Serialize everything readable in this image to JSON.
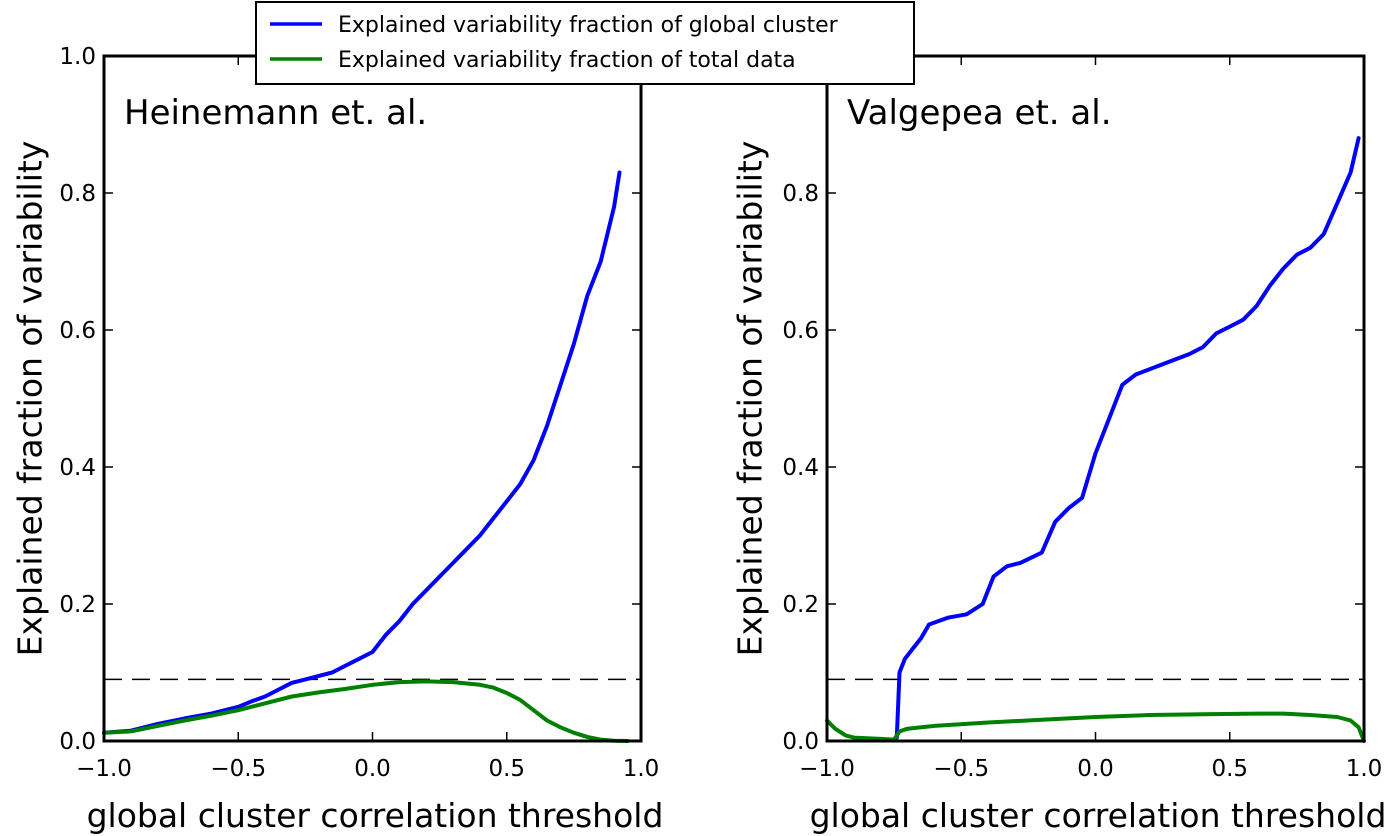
{
  "legend": {
    "entries": [
      {
        "label": "Explained variability fraction of global cluster",
        "color": "#0000ff"
      },
      {
        "label": "Explained variability fraction of total data",
        "color": "#008000"
      }
    ]
  },
  "chart_data": [
    {
      "type": "line",
      "title": "Heinemann et. al.",
      "xlabel": "global cluster correlation threshold",
      "ylabel": "Explained fraction of variability",
      "xlim": [
        -1.0,
        1.0
      ],
      "ylim": [
        0.0,
        1.0
      ],
      "xticks": [
        -1.0,
        -0.5,
        0.0,
        0.5,
        1.0
      ],
      "xtick_labels": [
        "−1.0",
        "−0.5",
        "0.0",
        "0.5",
        "1.0"
      ],
      "yticks": [
        0.0,
        0.2,
        0.4,
        0.6,
        0.8,
        1.0
      ],
      "ytick_labels": [
        "0.0",
        "0.2",
        "0.4",
        "0.6",
        "0.8",
        "1.0"
      ],
      "hline": {
        "y": 0.09,
        "style": "dashed",
        "color": "#000000"
      },
      "grid": false,
      "series": [
        {
          "name": "Explained variability fraction of global cluster",
          "color": "#0000ff",
          "x": [
            -1.0,
            -0.9,
            -0.8,
            -0.7,
            -0.6,
            -0.5,
            -0.45,
            -0.4,
            -0.35,
            -0.3,
            -0.25,
            -0.2,
            -0.15,
            -0.1,
            -0.05,
            0.0,
            0.05,
            0.1,
            0.15,
            0.2,
            0.25,
            0.3,
            0.35,
            0.4,
            0.45,
            0.5,
            0.55,
            0.6,
            0.65,
            0.7,
            0.75,
            0.8,
            0.85,
            0.9,
            0.92
          ],
          "y": [
            0.012,
            0.015,
            0.025,
            0.033,
            0.04,
            0.05,
            0.058,
            0.065,
            0.075,
            0.085,
            0.09,
            0.095,
            0.1,
            0.11,
            0.12,
            0.13,
            0.155,
            0.175,
            0.2,
            0.22,
            0.24,
            0.26,
            0.28,
            0.3,
            0.325,
            0.35,
            0.375,
            0.41,
            0.46,
            0.52,
            0.58,
            0.65,
            0.7,
            0.78,
            0.83
          ]
        },
        {
          "name": "Explained variability fraction of total data",
          "color": "#008000",
          "x": [
            -1.0,
            -0.9,
            -0.8,
            -0.7,
            -0.6,
            -0.5,
            -0.4,
            -0.3,
            -0.2,
            -0.1,
            0.0,
            0.1,
            0.2,
            0.3,
            0.4,
            0.45,
            0.5,
            0.55,
            0.6,
            0.65,
            0.7,
            0.75,
            0.8,
            0.85,
            0.9,
            0.95
          ],
          "y": [
            0.012,
            0.014,
            0.022,
            0.03,
            0.037,
            0.045,
            0.055,
            0.065,
            0.071,
            0.076,
            0.082,
            0.086,
            0.087,
            0.086,
            0.082,
            0.078,
            0.07,
            0.06,
            0.045,
            0.03,
            0.02,
            0.012,
            0.006,
            0.002,
            0.0005,
            0.0
          ]
        }
      ]
    },
    {
      "type": "line",
      "title": "Valgepea et. al.",
      "xlabel": "global cluster correlation threshold",
      "ylabel": "Explained fraction of variability",
      "xlim": [
        -1.0,
        1.0
      ],
      "ylim": [
        0.0,
        1.0
      ],
      "xticks": [
        -1.0,
        -0.5,
        0.0,
        0.5,
        1.0
      ],
      "xtick_labels": [
        "−1.0",
        "−0.5",
        "0.0",
        "0.5",
        "1.0"
      ],
      "yticks": [
        0.0,
        0.2,
        0.4,
        0.6,
        0.8
      ],
      "ytick_labels": [
        "0.0",
        "0.2",
        "0.4",
        "0.6",
        "0.8"
      ],
      "hline": {
        "y": 0.09,
        "style": "dashed",
        "color": "#000000"
      },
      "grid": false,
      "series": [
        {
          "name": "Explained variability fraction of global cluster",
          "color": "#0000ff",
          "x": [
            -0.74,
            -0.73,
            -0.71,
            -0.68,
            -0.65,
            -0.62,
            -0.55,
            -0.48,
            -0.42,
            -0.38,
            -0.33,
            -0.28,
            -0.2,
            -0.15,
            -0.1,
            -0.05,
            0.0,
            0.05,
            0.1,
            0.15,
            0.25,
            0.35,
            0.4,
            0.45,
            0.5,
            0.55,
            0.6,
            0.65,
            0.7,
            0.75,
            0.8,
            0.85,
            0.9,
            0.95,
            0.98
          ],
          "y": [
            0.005,
            0.1,
            0.12,
            0.135,
            0.15,
            0.17,
            0.18,
            0.185,
            0.2,
            0.24,
            0.255,
            0.26,
            0.275,
            0.32,
            0.34,
            0.355,
            0.42,
            0.47,
            0.52,
            0.535,
            0.55,
            0.565,
            0.575,
            0.595,
            0.605,
            0.615,
            0.635,
            0.665,
            0.69,
            0.71,
            0.72,
            0.74,
            0.785,
            0.83,
            0.88
          ]
        },
        {
          "name": "Explained variability fraction of total data",
          "color": "#008000",
          "x": [
            -1.0,
            -0.97,
            -0.93,
            -0.9,
            -0.85,
            -0.8,
            -0.75,
            -0.73,
            -0.7,
            -0.6,
            -0.4,
            -0.2,
            0.0,
            0.2,
            0.4,
            0.6,
            0.7,
            0.8,
            0.9,
            0.95,
            0.98,
            1.0
          ],
          "y": [
            0.03,
            0.018,
            0.008,
            0.005,
            0.004,
            0.003,
            0.002,
            0.014,
            0.018,
            0.022,
            0.027,
            0.031,
            0.035,
            0.038,
            0.039,
            0.04,
            0.04,
            0.038,
            0.035,
            0.03,
            0.02,
            0.0
          ]
        }
      ]
    }
  ]
}
